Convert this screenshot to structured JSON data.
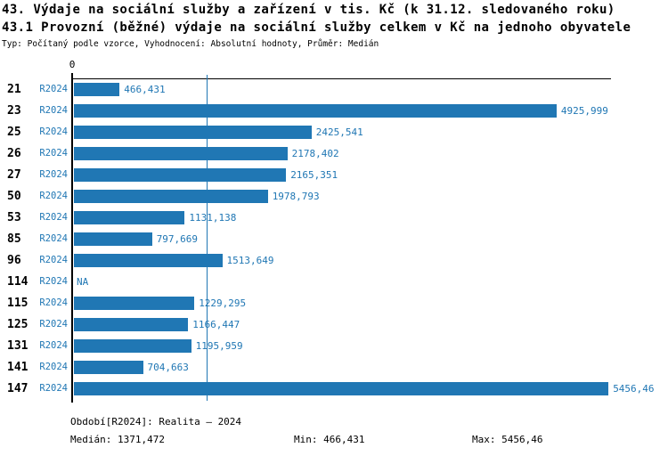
{
  "header": {
    "title": "43. Výdaje na sociální služby a zařízení v tis. Kč (k 31.12. sledovaného roku)",
    "subtitle": "43.1 Provozní (běžné) výdaje na sociální služby celkem v Kč na jednoho obyvatele",
    "meta": "Typ: Počítaný podle vzorce, Vyhodnocení: Absolutní hodnoty, Průměr: Medián"
  },
  "colors": {
    "bar": "#2077b4",
    "label_text": "#2077b4",
    "axis": "#000000"
  },
  "chart_data": {
    "type": "bar",
    "orientation": "horizontal",
    "title": "43.1 Provozní (běžné) výdaje na sociální služby celkem v Kč na jednoho obyvatele",
    "categories": [
      "21",
      "23",
      "25",
      "26",
      "27",
      "50",
      "53",
      "85",
      "96",
      "114",
      "115",
      "125",
      "131",
      "141",
      "147"
    ],
    "series_label": "R2024",
    "values": [
      466.431,
      4925.999,
      2425.541,
      2178.402,
      2165.351,
      1978.793,
      1131.138,
      797.669,
      1513.649,
      null,
      1229.295,
      1166.447,
      1195.959,
      704.663,
      5456.46
    ],
    "value_labels": [
      "466,431",
      "4925,999",
      "2425,541",
      "2178,402",
      "2165,351",
      "1978,793",
      "1131,138",
      "797,669",
      "1513,649",
      "NA",
      "1229,295",
      "1166,447",
      "1195,959",
      "704,663",
      "5456,46"
    ],
    "xlim": [
      0,
      5500
    ],
    "zero_tick_label": "0",
    "median_line_value": 1371.472,
    "grid": false,
    "legend_position": "none"
  },
  "footer": {
    "period": "Období[R2024]: Realita – 2024",
    "median": "Medián: 1371,472",
    "min": "Min: 466,431",
    "max": "Max: 5456,46"
  }
}
